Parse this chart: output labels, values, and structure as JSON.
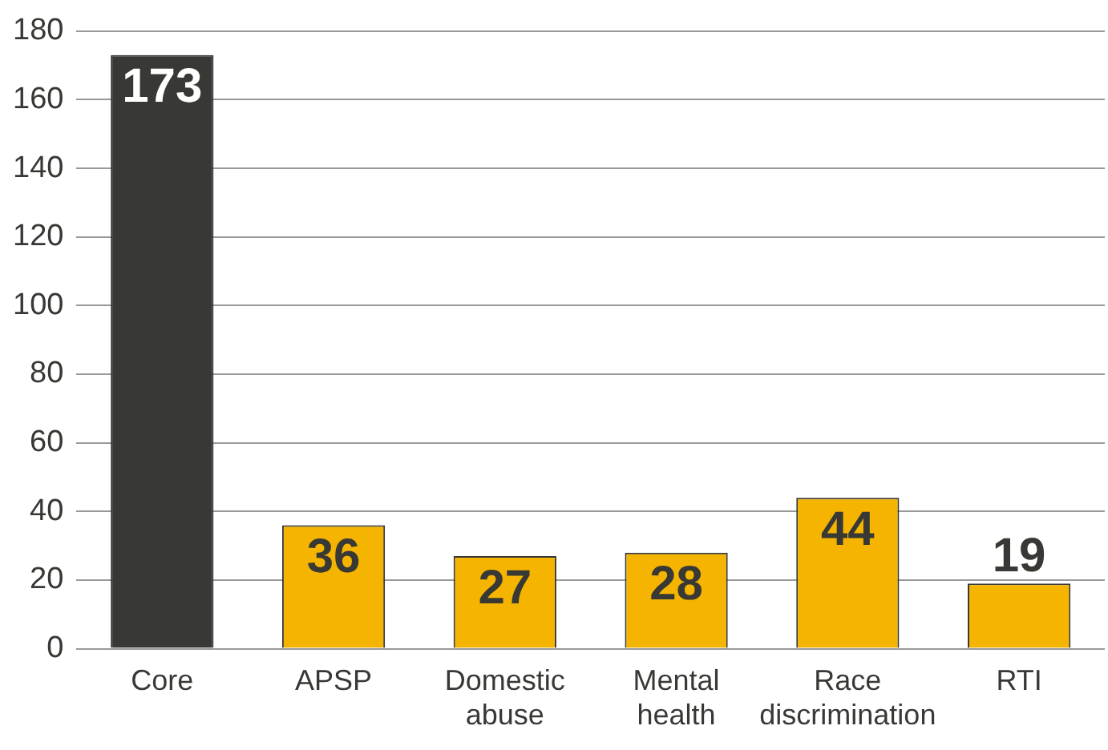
{
  "chart_data": {
    "type": "bar",
    "categories": [
      "Core",
      "APSP",
      "Domestic abuse",
      "Mental health",
      "Race discrimination",
      "RTI"
    ],
    "values": [
      173,
      36,
      27,
      28,
      44,
      19
    ],
    "colors": [
      "#383835",
      "#f5b400",
      "#f5b400",
      "#f5b400",
      "#f5b400",
      "#f5b400"
    ],
    "ylim": [
      0,
      180
    ],
    "yticks": [
      0,
      20,
      40,
      60,
      80,
      100,
      120,
      140,
      160,
      180
    ],
    "grid": "y",
    "data_labels": true,
    "legend": false
  }
}
